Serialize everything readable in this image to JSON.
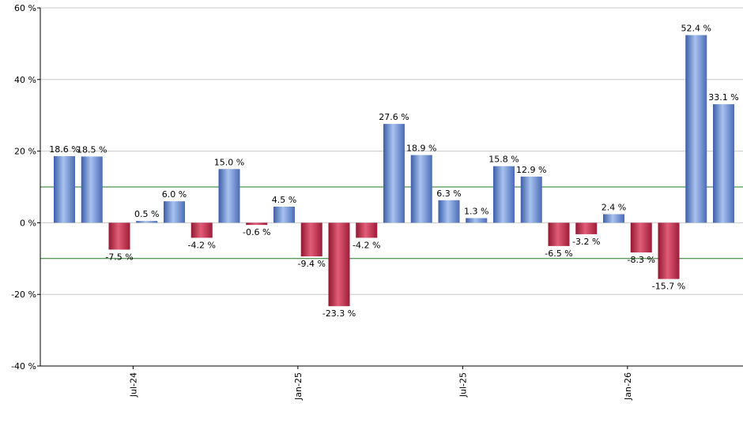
{
  "chart_data": {
    "type": "bar",
    "title": "",
    "xlabel": "",
    "ylabel": "",
    "ylim": [
      -40,
      60
    ],
    "y_ticks": [
      -40,
      -20,
      0,
      20,
      40,
      60
    ],
    "y_tick_labels": [
      "-40 %",
      "-20 %",
      "0 %",
      "20 %",
      "40 %",
      "60 %"
    ],
    "x_tick_labels": [
      {
        "label": "Jul-24",
        "index": 2.5
      },
      {
        "label": "Jan-25",
        "index": 8.5
      },
      {
        "label": "Jul-25",
        "index": 14.5
      },
      {
        "label": "Jan-26",
        "index": 20.5
      }
    ],
    "values": [
      18.6,
      18.5,
      -7.5,
      0.5,
      6.0,
      -4.2,
      15.0,
      -0.6,
      4.5,
      -9.4,
      -23.3,
      -4.2,
      27.6,
      18.9,
      6.3,
      1.3,
      15.8,
      12.9,
      -6.5,
      -3.2,
      2.4,
      -8.3,
      -15.7,
      52.4,
      33.1
    ],
    "value_labels": [
      "18.6 %",
      "18.5 %",
      "-7.5 %",
      "0.5 %",
      "6.0 %",
      "-4.2 %",
      "15.0 %",
      "-0.6 %",
      "4.5 %",
      "-9.4 %",
      "-23.3 %",
      "-4.2 %",
      "27.6 %",
      "18.9 %",
      "6.3 %",
      "1.3 %",
      "15.8 %",
      "12.9 %",
      "-6.5 %",
      "-3.2 %",
      "2.4 %",
      "-8.3 %",
      "-15.7 %",
      "52.4 %",
      "33.1 %"
    ],
    "reference_lines": [
      10,
      -10
    ],
    "grid": true,
    "legend": "none",
    "colors": {
      "positive": "#6f93d8",
      "negative": "#c8304e",
      "reference_line": "#1e7a1e",
      "grid": "#c8c8c8",
      "axis": "#000000"
    }
  }
}
